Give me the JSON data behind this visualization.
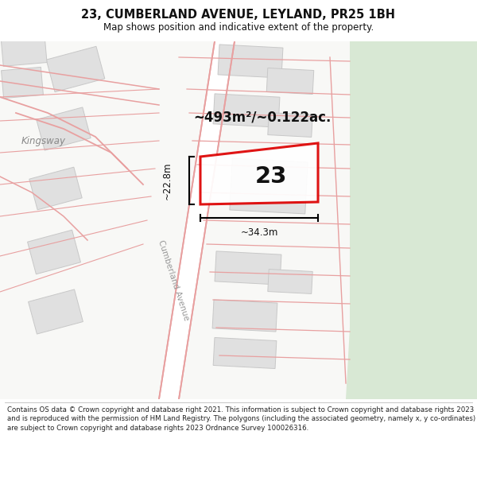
{
  "title": "23, CUMBERLAND AVENUE, LEYLAND, PR25 1BH",
  "subtitle": "Map shows position and indicative extent of the property.",
  "footer": "Contains OS data © Crown copyright and database right 2021. This information is subject to Crown copyright and database rights 2023 and is reproduced with the permission of HM Land Registry. The polygons (including the associated geometry, namely x, y co-ordinates) are subject to Crown copyright and database rights 2023 Ordnance Survey 100026316.",
  "area_label": "~493m²/~0.122ac.",
  "dim_h": "~22.8m",
  "dim_w": "~34.3m",
  "property_number": "23",
  "map_bg": "#f7f7f5",
  "green_color": "#d8e8d4",
  "road_line": "#e8a0a0",
  "building_fill": "#e0e0e0",
  "building_edge": "#c8c8c8",
  "property_line": "#dd0000",
  "title_color": "#111111",
  "footer_color": "#222222",
  "dim_color": "#111111",
  "street_color": "#999999",
  "kingsway_label": "Kingsway",
  "cumberland_label": "Cumberland Avenue"
}
